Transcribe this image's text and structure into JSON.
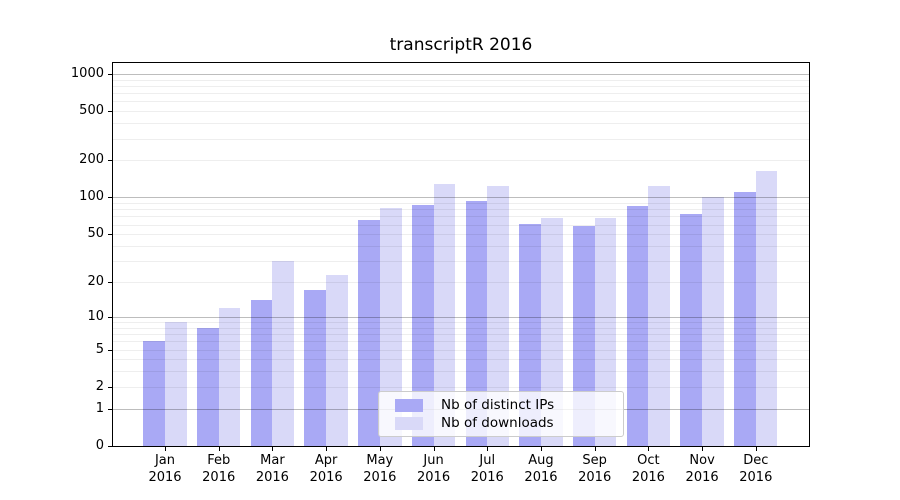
{
  "chart_data": {
    "type": "bar",
    "title": "transcriptR 2016",
    "categories": [
      "Jan",
      "Feb",
      "Mar",
      "Apr",
      "May",
      "Jun",
      "Jul",
      "Aug",
      "Sep",
      "Oct",
      "Nov",
      "Dec"
    ],
    "category_year": "2016",
    "series": [
      {
        "name": "Nb of distinct IPs",
        "color": "#a9a9f5",
        "values": [
          6,
          8,
          14,
          17,
          66,
          87,
          93,
          61,
          58,
          86,
          73,
          110
        ]
      },
      {
        "name": "Nb of downloads",
        "color": "#d9d9f8",
        "values": [
          9,
          12,
          30,
          23,
          82,
          128,
          124,
          68,
          68,
          123,
          100,
          164
        ]
      }
    ],
    "yscale": "log1p",
    "ylim": [
      0,
      1250
    ],
    "yticks": [
      0,
      1,
      2,
      5,
      10,
      20,
      50,
      100,
      200,
      500,
      1000
    ],
    "major_gridlines": [
      1,
      10,
      100,
      1000
    ],
    "minor_gridline_mantissas": [
      2,
      3,
      4,
      5,
      6,
      7,
      8,
      9
    ],
    "grid": true,
    "legend_position": "lower-center"
  }
}
